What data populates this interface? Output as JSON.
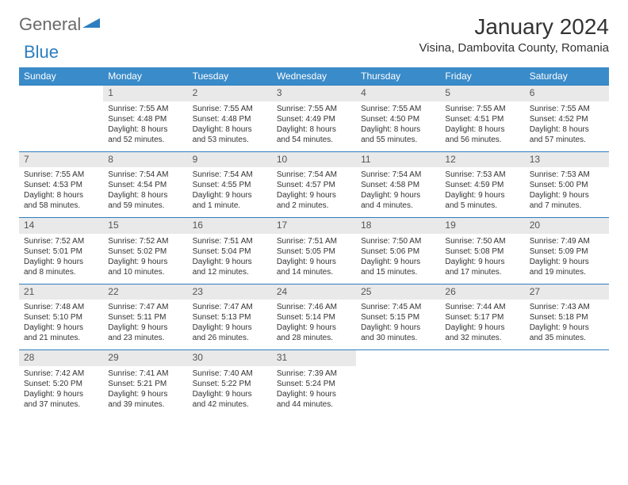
{
  "logo": {
    "text1": "General",
    "text2": "Blue"
  },
  "title": "January 2024",
  "location": "Visina, Dambovita County, Romania",
  "colors": {
    "header_bg": "#3a8bc9",
    "divider": "#2d7ec0",
    "daynum_bg": "#e9e9e9"
  },
  "weekdays": [
    "Sunday",
    "Monday",
    "Tuesday",
    "Wednesday",
    "Thursday",
    "Friday",
    "Saturday"
  ],
  "weeks": [
    {
      "nums": [
        "",
        "1",
        "2",
        "3",
        "4",
        "5",
        "6"
      ],
      "cells": [
        {
          "empty": true
        },
        {
          "sr": "Sunrise: 7:55 AM",
          "ss": "Sunset: 4:48 PM",
          "d1": "Daylight: 8 hours",
          "d2": "and 52 minutes."
        },
        {
          "sr": "Sunrise: 7:55 AM",
          "ss": "Sunset: 4:48 PM",
          "d1": "Daylight: 8 hours",
          "d2": "and 53 minutes."
        },
        {
          "sr": "Sunrise: 7:55 AM",
          "ss": "Sunset: 4:49 PM",
          "d1": "Daylight: 8 hours",
          "d2": "and 54 minutes."
        },
        {
          "sr": "Sunrise: 7:55 AM",
          "ss": "Sunset: 4:50 PM",
          "d1": "Daylight: 8 hours",
          "d2": "and 55 minutes."
        },
        {
          "sr": "Sunrise: 7:55 AM",
          "ss": "Sunset: 4:51 PM",
          "d1": "Daylight: 8 hours",
          "d2": "and 56 minutes."
        },
        {
          "sr": "Sunrise: 7:55 AM",
          "ss": "Sunset: 4:52 PM",
          "d1": "Daylight: 8 hours",
          "d2": "and 57 minutes."
        }
      ]
    },
    {
      "nums": [
        "7",
        "8",
        "9",
        "10",
        "11",
        "12",
        "13"
      ],
      "cells": [
        {
          "sr": "Sunrise: 7:55 AM",
          "ss": "Sunset: 4:53 PM",
          "d1": "Daylight: 8 hours",
          "d2": "and 58 minutes."
        },
        {
          "sr": "Sunrise: 7:54 AM",
          "ss": "Sunset: 4:54 PM",
          "d1": "Daylight: 8 hours",
          "d2": "and 59 minutes."
        },
        {
          "sr": "Sunrise: 7:54 AM",
          "ss": "Sunset: 4:55 PM",
          "d1": "Daylight: 9 hours",
          "d2": "and 1 minute."
        },
        {
          "sr": "Sunrise: 7:54 AM",
          "ss": "Sunset: 4:57 PM",
          "d1": "Daylight: 9 hours",
          "d2": "and 2 minutes."
        },
        {
          "sr": "Sunrise: 7:54 AM",
          "ss": "Sunset: 4:58 PM",
          "d1": "Daylight: 9 hours",
          "d2": "and 4 minutes."
        },
        {
          "sr": "Sunrise: 7:53 AM",
          "ss": "Sunset: 4:59 PM",
          "d1": "Daylight: 9 hours",
          "d2": "and 5 minutes."
        },
        {
          "sr": "Sunrise: 7:53 AM",
          "ss": "Sunset: 5:00 PM",
          "d1": "Daylight: 9 hours",
          "d2": "and 7 minutes."
        }
      ]
    },
    {
      "nums": [
        "14",
        "15",
        "16",
        "17",
        "18",
        "19",
        "20"
      ],
      "cells": [
        {
          "sr": "Sunrise: 7:52 AM",
          "ss": "Sunset: 5:01 PM",
          "d1": "Daylight: 9 hours",
          "d2": "and 8 minutes."
        },
        {
          "sr": "Sunrise: 7:52 AM",
          "ss": "Sunset: 5:02 PM",
          "d1": "Daylight: 9 hours",
          "d2": "and 10 minutes."
        },
        {
          "sr": "Sunrise: 7:51 AM",
          "ss": "Sunset: 5:04 PM",
          "d1": "Daylight: 9 hours",
          "d2": "and 12 minutes."
        },
        {
          "sr": "Sunrise: 7:51 AM",
          "ss": "Sunset: 5:05 PM",
          "d1": "Daylight: 9 hours",
          "d2": "and 14 minutes."
        },
        {
          "sr": "Sunrise: 7:50 AM",
          "ss": "Sunset: 5:06 PM",
          "d1": "Daylight: 9 hours",
          "d2": "and 15 minutes."
        },
        {
          "sr": "Sunrise: 7:50 AM",
          "ss": "Sunset: 5:08 PM",
          "d1": "Daylight: 9 hours",
          "d2": "and 17 minutes."
        },
        {
          "sr": "Sunrise: 7:49 AM",
          "ss": "Sunset: 5:09 PM",
          "d1": "Daylight: 9 hours",
          "d2": "and 19 minutes."
        }
      ]
    },
    {
      "nums": [
        "21",
        "22",
        "23",
        "24",
        "25",
        "26",
        "27"
      ],
      "cells": [
        {
          "sr": "Sunrise: 7:48 AM",
          "ss": "Sunset: 5:10 PM",
          "d1": "Daylight: 9 hours",
          "d2": "and 21 minutes."
        },
        {
          "sr": "Sunrise: 7:47 AM",
          "ss": "Sunset: 5:11 PM",
          "d1": "Daylight: 9 hours",
          "d2": "and 23 minutes."
        },
        {
          "sr": "Sunrise: 7:47 AM",
          "ss": "Sunset: 5:13 PM",
          "d1": "Daylight: 9 hours",
          "d2": "and 26 minutes."
        },
        {
          "sr": "Sunrise: 7:46 AM",
          "ss": "Sunset: 5:14 PM",
          "d1": "Daylight: 9 hours",
          "d2": "and 28 minutes."
        },
        {
          "sr": "Sunrise: 7:45 AM",
          "ss": "Sunset: 5:15 PM",
          "d1": "Daylight: 9 hours",
          "d2": "and 30 minutes."
        },
        {
          "sr": "Sunrise: 7:44 AM",
          "ss": "Sunset: 5:17 PM",
          "d1": "Daylight: 9 hours",
          "d2": "and 32 minutes."
        },
        {
          "sr": "Sunrise: 7:43 AM",
          "ss": "Sunset: 5:18 PM",
          "d1": "Daylight: 9 hours",
          "d2": "and 35 minutes."
        }
      ]
    },
    {
      "nums": [
        "28",
        "29",
        "30",
        "31",
        "",
        "",
        ""
      ],
      "cells": [
        {
          "sr": "Sunrise: 7:42 AM",
          "ss": "Sunset: 5:20 PM",
          "d1": "Daylight: 9 hours",
          "d2": "and 37 minutes."
        },
        {
          "sr": "Sunrise: 7:41 AM",
          "ss": "Sunset: 5:21 PM",
          "d1": "Daylight: 9 hours",
          "d2": "and 39 minutes."
        },
        {
          "sr": "Sunrise: 7:40 AM",
          "ss": "Sunset: 5:22 PM",
          "d1": "Daylight: 9 hours",
          "d2": "and 42 minutes."
        },
        {
          "sr": "Sunrise: 7:39 AM",
          "ss": "Sunset: 5:24 PM",
          "d1": "Daylight: 9 hours",
          "d2": "and 44 minutes."
        },
        {
          "empty": true
        },
        {
          "empty": true
        },
        {
          "empty": true
        }
      ]
    }
  ]
}
